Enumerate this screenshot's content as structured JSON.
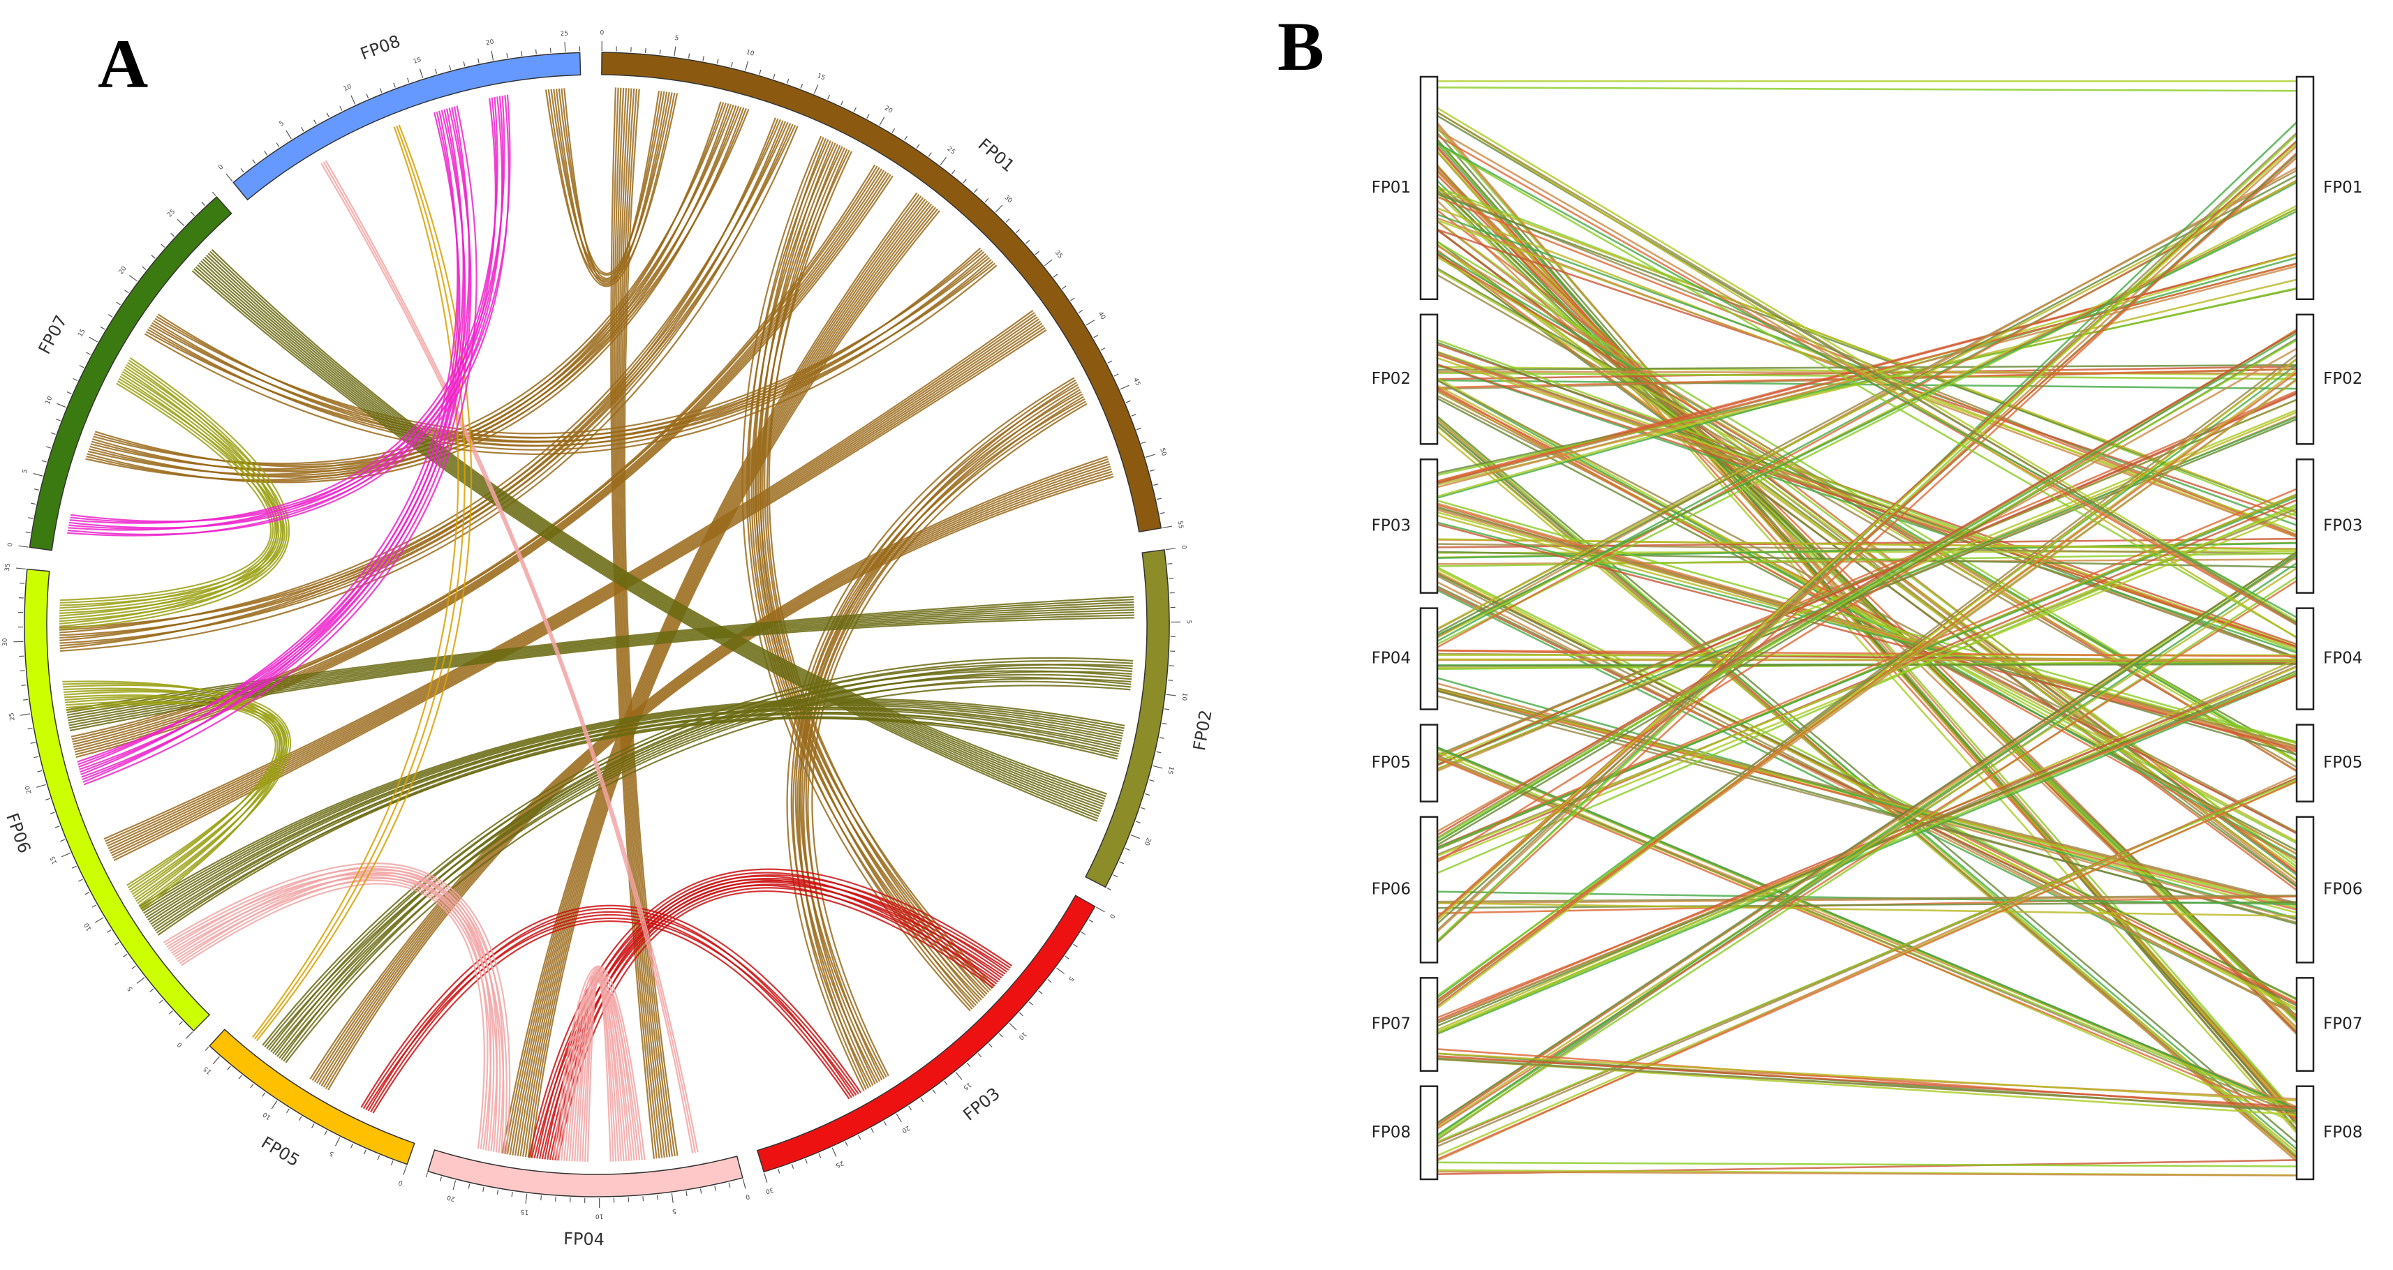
{
  "panel_a": {
    "letter": "A",
    "chromosomes": [
      {
        "id": "FP01",
        "color": "#8b5a10",
        "length": 55
      },
      {
        "id": "FP02",
        "color": "#8c8c28",
        "length": 24
      },
      {
        "id": "FP03",
        "color": "#ee1111",
        "length": 30
      },
      {
        "id": "FP04",
        "color": "#ffc8c8",
        "length": 22
      },
      {
        "id": "FP05",
        "color": "#ffc000",
        "length": 16
      },
      {
        "id": "FP06",
        "color": "#ccff00",
        "length": 35
      },
      {
        "id": "FP07",
        "color": "#3a7a10",
        "length": 28
      },
      {
        "id": "FP08",
        "color": "#6699ff",
        "length": 26
      }
    ],
    "link_colors": {
      "FP01": "#9a6a1a",
      "FP02": "#6a6a12",
      "FP03": "#cc1111",
      "FP04": "#f2a5a5",
      "FP05": "#d8a000",
      "FP06": "#9aa012",
      "FP07": "#557722",
      "FP08": "#ee22cc"
    },
    "links": [
      {
        "from": [
          "FP01",
          2
        ],
        "to": [
          "FP04",
          5
        ],
        "count": 10
      },
      {
        "from": [
          "FP01",
          5
        ],
        "to": [
          "FP08",
          24
        ],
        "count": 8
      },
      {
        "from": [
          "FP01",
          10
        ],
        "to": [
          "FP07",
          8
        ],
        "count": 12
      },
      {
        "from": [
          "FP01",
          14
        ],
        "to": [
          "FP06",
          30
        ],
        "count": 10
      },
      {
        "from": [
          "FP01",
          18
        ],
        "to": [
          "FP03",
          10
        ],
        "count": 14
      },
      {
        "from": [
          "FP01",
          22
        ],
        "to": [
          "FP06",
          22
        ],
        "count": 9
      },
      {
        "from": [
          "FP01",
          26
        ],
        "to": [
          "FP04",
          16
        ],
        "count": 12
      },
      {
        "from": [
          "FP01",
          32
        ],
        "to": [
          "FP07",
          18
        ],
        "count": 10
      },
      {
        "from": [
          "FP01",
          38
        ],
        "to": [
          "FP06",
          14
        ],
        "count": 10
      },
      {
        "from": [
          "FP01",
          44
        ],
        "to": [
          "FP03",
          20
        ],
        "count": 12
      },
      {
        "from": [
          "FP01",
          50
        ],
        "to": [
          "FP05",
          8
        ],
        "count": 9
      },
      {
        "from": [
          "FP02",
          4
        ],
        "to": [
          "FP06",
          24
        ],
        "count": 9
      },
      {
        "from": [
          "FP02",
          9
        ],
        "to": [
          "FP05",
          12
        ],
        "count": 12
      },
      {
        "from": [
          "FP02",
          14
        ],
        "to": [
          "FP06",
          8
        ],
        "count": 14
      },
      {
        "from": [
          "FP02",
          19
        ],
        "to": [
          "FP07",
          24
        ],
        "count": 12
      },
      {
        "from": [
          "FP03",
          8
        ],
        "to": [
          "FP04",
          14
        ],
        "count": 12
      },
      {
        "from": [
          "FP03",
          22
        ],
        "to": [
          "FP05",
          4
        ],
        "count": 6
      },
      {
        "from": [
          "FP04",
          8
        ],
        "to": [
          "FP04",
          12
        ],
        "count": 14
      },
      {
        "from": [
          "FP04",
          18
        ],
        "to": [
          "FP06",
          5
        ],
        "count": 12
      },
      {
        "from": [
          "FP04",
          3
        ],
        "to": [
          "FP08",
          6
        ],
        "count": 3
      },
      {
        "from": [
          "FP05",
          14
        ],
        "to": [
          "FP08",
          12
        ],
        "count": 3
      },
      {
        "from": [
          "FP06",
          26
        ],
        "to": [
          "FP06",
          10
        ],
        "count": 12
      },
      {
        "from": [
          "FP06",
          32
        ],
        "to": [
          "FP07",
          14
        ],
        "count": 12
      },
      {
        "from": [
          "FP08",
          16
        ],
        "to": [
          "FP06",
          20
        ],
        "count": 10
      },
      {
        "from": [
          "FP08",
          20
        ],
        "to": [
          "FP07",
          2
        ],
        "count": 8
      }
    ]
  },
  "panel_b": {
    "letter": "B",
    "chromosomes": [
      {
        "id": "FP01",
        "size": 55
      },
      {
        "id": "FP02",
        "size": 32
      },
      {
        "id": "FP03",
        "size": 33
      },
      {
        "id": "FP04",
        "size": 25
      },
      {
        "id": "FP05",
        "size": 19
      },
      {
        "id": "FP06",
        "size": 36
      },
      {
        "id": "FP07",
        "size": 23
      },
      {
        "id": "FP08",
        "size": 23
      }
    ],
    "line_colors": [
      "#88cc22",
      "#aacc22",
      "#cc8844",
      "#dd6633",
      "#668833",
      "#b8b822",
      "#44aa44",
      "#998844",
      "#cc5533"
    ],
    "bundles": [
      {
        "from": [
          "FP01",
          0.05
        ],
        "to": [
          "FP01",
          0.05
        ],
        "count": 2
      },
      {
        "from": [
          "FP01",
          0.3
        ],
        "to": [
          "FP08",
          0.4
        ],
        "count": 14
      },
      {
        "from": [
          "FP01",
          0.5
        ],
        "to": [
          "FP07",
          0.5
        ],
        "count": 12
      },
      {
        "from": [
          "FP01",
          0.7
        ],
        "to": [
          "FP06",
          0.4
        ],
        "count": 12
      },
      {
        "from": [
          "FP01",
          0.85
        ],
        "to": [
          "FP05",
          0.5
        ],
        "count": 8
      },
      {
        "from": [
          "FP01",
          0.6
        ],
        "to": [
          "FP03",
          0.5
        ],
        "count": 10
      },
      {
        "from": [
          "FP02",
          0.5
        ],
        "to": [
          "FP02",
          0.5
        ],
        "count": 8
      },
      {
        "from": [
          "FP02",
          0.6
        ],
        "to": [
          "FP06",
          0.2
        ],
        "count": 10
      },
      {
        "from": [
          "FP02",
          0.3
        ],
        "to": [
          "FP04",
          0.4
        ],
        "count": 10
      },
      {
        "from": [
          "FP02",
          0.8
        ],
        "to": [
          "FP08",
          0.7
        ],
        "count": 8
      },
      {
        "from": [
          "FP03",
          0.7
        ],
        "to": [
          "FP03",
          0.7
        ],
        "count": 10
      },
      {
        "from": [
          "FP03",
          0.4
        ],
        "to": [
          "FP05",
          0.3
        ],
        "count": 10
      },
      {
        "from": [
          "FP03",
          0.2
        ],
        "to": [
          "FP01",
          0.9
        ],
        "count": 10
      },
      {
        "from": [
          "FP03",
          0.9
        ],
        "to": [
          "FP07",
          0.3
        ],
        "count": 10
      },
      {
        "from": [
          "FP04",
          0.5
        ],
        "to": [
          "FP04",
          0.5
        ],
        "count": 10
      },
      {
        "from": [
          "FP04",
          0.3
        ],
        "to": [
          "FP01",
          0.5
        ],
        "count": 10
      },
      {
        "from": [
          "FP04",
          0.8
        ],
        "to": [
          "FP06",
          0.7
        ],
        "count": 10
      },
      {
        "from": [
          "FP05",
          0.5
        ],
        "to": [
          "FP02",
          0.7
        ],
        "count": 10
      },
      {
        "from": [
          "FP05",
          0.4
        ],
        "to": [
          "FP08",
          0.3
        ],
        "count": 8
      },
      {
        "from": [
          "FP06",
          0.3
        ],
        "to": [
          "FP03",
          0.3
        ],
        "count": 10
      },
      {
        "from": [
          "FP06",
          0.6
        ],
        "to": [
          "FP06",
          0.6
        ],
        "count": 6
      },
      {
        "from": [
          "FP06",
          0.8
        ],
        "to": [
          "FP01",
          0.3
        ],
        "count": 10
      },
      {
        "from": [
          "FP07",
          0.5
        ],
        "to": [
          "FP04",
          0.6
        ],
        "count": 10
      },
      {
        "from": [
          "FP07",
          0.3
        ],
        "to": [
          "FP02",
          0.4
        ],
        "count": 8
      },
      {
        "from": [
          "FP08",
          0.5
        ],
        "to": [
          "FP03",
          0.8
        ],
        "count": 10
      },
      {
        "from": [
          "FP08",
          0.7
        ],
        "to": [
          "FP05",
          0.7
        ],
        "count": 6
      },
      {
        "from": [
          "FP08",
          0.9
        ],
        "to": [
          "FP08",
          0.9
        ],
        "count": 4
      },
      {
        "from": [
          "FP01",
          0.2
        ],
        "to": [
          "FP04",
          0.2
        ],
        "count": 8
      },
      {
        "from": [
          "FP07",
          0.8
        ],
        "to": [
          "FP08",
          0.2
        ],
        "count": 8
      },
      {
        "from": [
          "FP06",
          0.2
        ],
        "to": [
          "FP02",
          0.2
        ],
        "count": 8
      }
    ]
  }
}
